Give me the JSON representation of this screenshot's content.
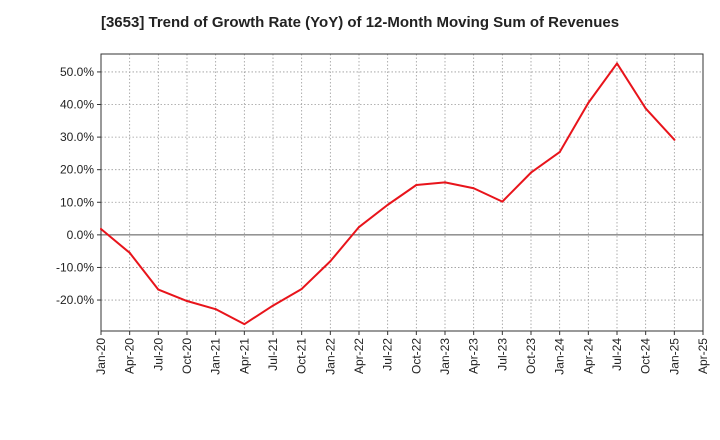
{
  "chart_data": {
    "type": "line",
    "title": "[3653]  Trend of Growth Rate (YoY) of 12-Month Moving Sum of Revenues",
    "xlabel": "",
    "ylabel": "",
    "x_tick_labels": [
      "Jan-20",
      "Apr-20",
      "Jul-20",
      "Oct-20",
      "Jan-21",
      "Apr-21",
      "Jul-21",
      "Oct-21",
      "Jan-22",
      "Apr-22",
      "Jul-22",
      "Oct-22",
      "Jan-23",
      "Apr-23",
      "Jul-23",
      "Oct-23",
      "Jan-24",
      "Apr-24",
      "Jul-24",
      "Oct-24",
      "Jan-25",
      "Apr-25"
    ],
    "y_ticks": [
      -20,
      -10,
      0,
      10,
      20,
      30,
      40,
      50
    ],
    "y_tick_labels": [
      "-20.0%",
      "-10.0%",
      "0.0%",
      "10.0%",
      "20.0%",
      "30.0%",
      "40.0%",
      "50.0%"
    ],
    "ylim": [
      -29.5,
      55.5
    ],
    "grid": true,
    "zero_line": true,
    "series": [
      {
        "color": "#e8141b",
        "x": [
          "Jan-20",
          "Apr-20",
          "Jul-20",
          "Oct-20",
          "Jan-21",
          "Apr-21",
          "Jul-21",
          "Oct-21",
          "Jan-22",
          "Apr-22",
          "Jul-22",
          "Oct-22",
          "Jan-23",
          "Apr-23",
          "Jul-23",
          "Oct-23",
          "Jan-24",
          "Apr-24",
          "Jul-24",
          "Oct-24",
          "Jan-25"
        ],
        "values": [
          1.8,
          -5.5,
          -16.8,
          -20.3,
          -22.8,
          -27.4,
          -21.7,
          -16.6,
          -8.1,
          2.4,
          9.2,
          15.3,
          16.1,
          14.3,
          10.2,
          19.1,
          25.4,
          40.5,
          52.6,
          38.8,
          29.2
        ]
      }
    ]
  }
}
